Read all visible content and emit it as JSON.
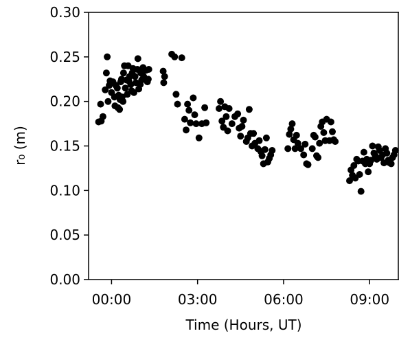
{
  "chart_data": {
    "type": "scatter",
    "xlabel": "Time (Hours, UT)",
    "ylabel": "r₀ (m)",
    "xlim": [
      -0.8,
      10.0
    ],
    "ylim": [
      0.0,
      0.3
    ],
    "x_ticks": [
      {
        "value": 0,
        "label": "00:00"
      },
      {
        "value": 3,
        "label": "03:00"
      },
      {
        "value": 6,
        "label": "06:00"
      },
      {
        "value": 9,
        "label": "09:00"
      }
    ],
    "y_ticks": [
      {
        "value": 0.0,
        "label": "0.00"
      },
      {
        "value": 0.05,
        "label": "0.05"
      },
      {
        "value": 0.1,
        "label": "0.10"
      },
      {
        "value": 0.15,
        "label": "0.15"
      },
      {
        "value": 0.2,
        "label": "0.20"
      },
      {
        "value": 0.25,
        "label": "0.25"
      },
      {
        "value": 0.3,
        "label": "0.30"
      }
    ],
    "grid": false,
    "marker_color": "#000000",
    "series": [
      {
        "x": [
          -0.45,
          -0.38,
          -0.36,
          -0.3,
          -0.22,
          -0.18,
          -0.15,
          -0.12,
          -0.08,
          -0.05,
          0.0,
          0.05,
          0.1,
          0.12,
          0.15,
          0.2,
          0.22,
          0.25,
          0.28,
          0.3,
          0.32,
          0.35,
          0.37,
          0.4,
          0.42,
          0.45,
          0.48,
          0.52,
          0.55,
          0.58,
          0.6,
          0.63,
          0.67,
          0.7,
          0.72,
          0.75,
          0.78,
          0.82,
          0.85,
          0.9,
          0.92,
          0.95,
          1.0,
          1.02,
          1.05,
          1.1,
          1.12,
          1.15,
          1.2,
          1.25,
          1.28,
          1.3,
          1.8,
          1.82,
          1.85,
          2.1,
          2.2,
          2.25,
          2.3,
          2.45,
          2.55,
          2.6,
          2.65,
          2.7,
          2.75,
          2.85,
          2.9,
          2.95,
          3.05,
          3.15,
          3.25,
          3.3,
          3.75,
          3.8,
          3.85,
          3.9,
          3.95,
          4.0,
          4.05,
          4.1,
          4.2,
          4.3,
          4.4,
          4.45,
          4.5,
          4.55,
          4.6,
          4.7,
          4.75,
          4.8,
          4.85,
          4.9,
          4.95,
          5.0,
          5.1,
          5.15,
          5.2,
          5.25,
          5.3,
          5.35,
          5.4,
          5.45,
          5.5,
          5.55,
          5.6,
          6.15,
          6.2,
          6.25,
          6.3,
          6.35,
          6.4,
          6.45,
          6.5,
          6.6,
          6.7,
          6.75,
          6.8,
          6.85,
          7.0,
          7.05,
          7.1,
          7.15,
          7.2,
          7.25,
          7.3,
          7.35,
          7.4,
          7.45,
          7.5,
          7.6,
          7.65,
          7.7,
          7.75,
          7.8,
          8.3,
          8.35,
          8.4,
          8.45,
          8.5,
          8.55,
          8.6,
          8.65,
          8.7,
          8.75,
          8.8,
          8.85,
          8.9,
          8.95,
          9.0,
          9.05,
          9.1,
          9.15,
          9.2,
          9.25,
          9.3,
          9.35,
          9.4,
          9.45,
          9.5,
          9.55,
          9.6,
          9.65,
          9.7,
          9.75,
          9.8,
          9.85,
          9.9
        ],
        "y": [
          0.177,
          0.197,
          0.178,
          0.183,
          0.213,
          0.232,
          0.25,
          0.2,
          0.218,
          0.223,
          0.21,
          0.222,
          0.205,
          0.195,
          0.218,
          0.215,
          0.193,
          0.207,
          0.191,
          0.202,
          0.222,
          0.225,
          0.205,
          0.2,
          0.232,
          0.24,
          0.215,
          0.224,
          0.208,
          0.24,
          0.223,
          0.228,
          0.219,
          0.212,
          0.232,
          0.237,
          0.21,
          0.228,
          0.221,
          0.236,
          0.248,
          0.214,
          0.219,
          0.232,
          0.224,
          0.238,
          0.228,
          0.235,
          0.235,
          0.222,
          0.225,
          0.236,
          0.234,
          0.221,
          0.228,
          0.253,
          0.25,
          0.208,
          0.197,
          0.249,
          0.18,
          0.168,
          0.197,
          0.19,
          0.176,
          0.204,
          0.185,
          0.175,
          0.159,
          0.175,
          0.193,
          0.176,
          0.192,
          0.2,
          0.178,
          0.171,
          0.194,
          0.183,
          0.167,
          0.192,
          0.175,
          0.183,
          0.186,
          0.17,
          0.161,
          0.172,
          0.179,
          0.155,
          0.159,
          0.191,
          0.164,
          0.15,
          0.164,
          0.153,
          0.147,
          0.156,
          0.144,
          0.139,
          0.13,
          0.146,
          0.159,
          0.132,
          0.136,
          0.14,
          0.145,
          0.147,
          0.163,
          0.169,
          0.175,
          0.157,
          0.147,
          0.162,
          0.153,
          0.147,
          0.14,
          0.152,
          0.13,
          0.129,
          0.147,
          0.162,
          0.16,
          0.139,
          0.137,
          0.153,
          0.172,
          0.177,
          0.165,
          0.156,
          0.18,
          0.156,
          0.177,
          0.166,
          0.157,
          0.155,
          0.111,
          0.123,
          0.117,
          0.128,
          0.114,
          0.135,
          0.133,
          0.118,
          0.099,
          0.133,
          0.143,
          0.13,
          0.135,
          0.121,
          0.13,
          0.134,
          0.15,
          0.142,
          0.139,
          0.135,
          0.149,
          0.145,
          0.137,
          0.14,
          0.131,
          0.147,
          0.142,
          0.134,
          0.131,
          0.13,
          0.137,
          0.14,
          0.145
        ]
      }
    ]
  }
}
